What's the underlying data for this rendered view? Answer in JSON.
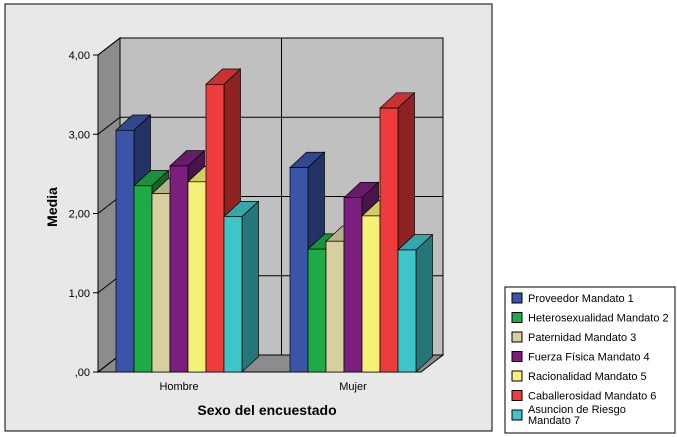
{
  "chart_data": {
    "type": "bar",
    "style": "3d-clustered",
    "title": "",
    "xlabel": "Sexo del encuestado",
    "ylabel": "Media",
    "ylim": [
      0,
      4
    ],
    "yticks": [
      ",00",
      "1,00",
      "2,00",
      "3,00",
      "4,00"
    ],
    "categories": [
      "Hombre",
      "Mujer"
    ],
    "grid": true,
    "legend": "right",
    "series": [
      {
        "name": "Proveedor Mandato 1",
        "color": "#3a55a8",
        "values": [
          3.05,
          2.58
        ]
      },
      {
        "name": "Heterosexualidad Mandato 2",
        "color": "#1faa48",
        "values": [
          2.35,
          1.55
        ]
      },
      {
        "name": "Paternidad Mandato 3",
        "color": "#d6d0a0",
        "values": [
          2.25,
          1.65
        ]
      },
      {
        "name": "Fuerza Física Mandato 4",
        "color": "#7a1f7e",
        "values": [
          2.6,
          2.2
        ]
      },
      {
        "name": "Racionalidad Mandato 5",
        "color": "#f5f07a",
        "values": [
          2.4,
          1.97
        ]
      },
      {
        "name": "Caballerosidad Mandato 6",
        "color": "#ee3b3b",
        "values": [
          3.63,
          3.33
        ]
      },
      {
        "name": "Asuncion de Riesgo Mandato 7",
        "color": "#3ec5c8",
        "values": [
          1.96,
          1.54
        ]
      }
    ]
  }
}
